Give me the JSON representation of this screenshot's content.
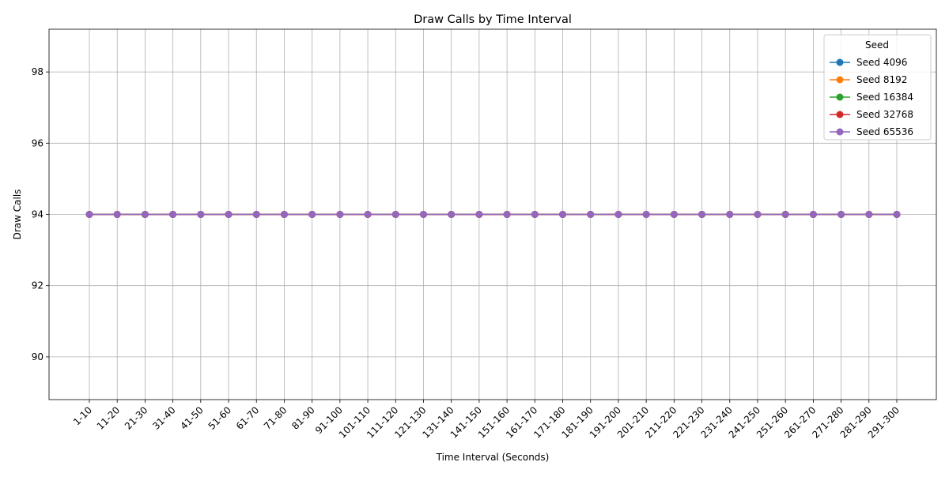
{
  "chart_data": {
    "type": "line",
    "title": "Draw Calls by Time Interval",
    "xlabel": "Time Interval (Seconds)",
    "ylabel": "Draw Calls",
    "categories": [
      "1-10",
      "11-20",
      "21-30",
      "31-40",
      "41-50",
      "51-60",
      "61-70",
      "71-80",
      "81-90",
      "91-100",
      "101-110",
      "111-120",
      "121-130",
      "131-140",
      "141-150",
      "151-160",
      "161-170",
      "171-180",
      "181-190",
      "191-200",
      "201-210",
      "211-220",
      "221-230",
      "231-240",
      "241-250",
      "251-260",
      "261-270",
      "271-280",
      "281-290",
      "291-300"
    ],
    "ylim": [
      88.8,
      99.2
    ],
    "yticks": [
      90,
      92,
      94,
      96,
      98
    ],
    "grid": true,
    "legend": {
      "title": "Seed",
      "placement": "top-right"
    },
    "series": [
      {
        "name": "Seed 4096",
        "color": "#1f77b4",
        "values": [
          94,
          94,
          94,
          94,
          94,
          94,
          94,
          94,
          94,
          94,
          94,
          94,
          94,
          94,
          94,
          94,
          94,
          94,
          94,
          94,
          94,
          94,
          94,
          94,
          94,
          94,
          94,
          94,
          94,
          94
        ]
      },
      {
        "name": "Seed 8192",
        "color": "#ff7f0e",
        "values": [
          94,
          94,
          94,
          94,
          94,
          94,
          94,
          94,
          94,
          94,
          94,
          94,
          94,
          94,
          94,
          94,
          94,
          94,
          94,
          94,
          94,
          94,
          94,
          94,
          94,
          94,
          94,
          94,
          94,
          94
        ]
      },
      {
        "name": "Seed 16384",
        "color": "#2ca02c",
        "values": [
          94,
          94,
          94,
          94,
          94,
          94,
          94,
          94,
          94,
          94,
          94,
          94,
          94,
          94,
          94,
          94,
          94,
          94,
          94,
          94,
          94,
          94,
          94,
          94,
          94,
          94,
          94,
          94,
          94,
          94
        ]
      },
      {
        "name": "Seed 32768",
        "color": "#d62728",
        "values": [
          94,
          94,
          94,
          94,
          94,
          94,
          94,
          94,
          94,
          94,
          94,
          94,
          94,
          94,
          94,
          94,
          94,
          94,
          94,
          94,
          94,
          94,
          94,
          94,
          94,
          94,
          94,
          94,
          94,
          94
        ]
      },
      {
        "name": "Seed 65536",
        "color": "#9467bd",
        "values": [
          94,
          94,
          94,
          94,
          94,
          94,
          94,
          94,
          94,
          94,
          94,
          94,
          94,
          94,
          94,
          94,
          94,
          94,
          94,
          94,
          94,
          94,
          94,
          94,
          94,
          94,
          94,
          94,
          94,
          94
        ]
      }
    ]
  }
}
